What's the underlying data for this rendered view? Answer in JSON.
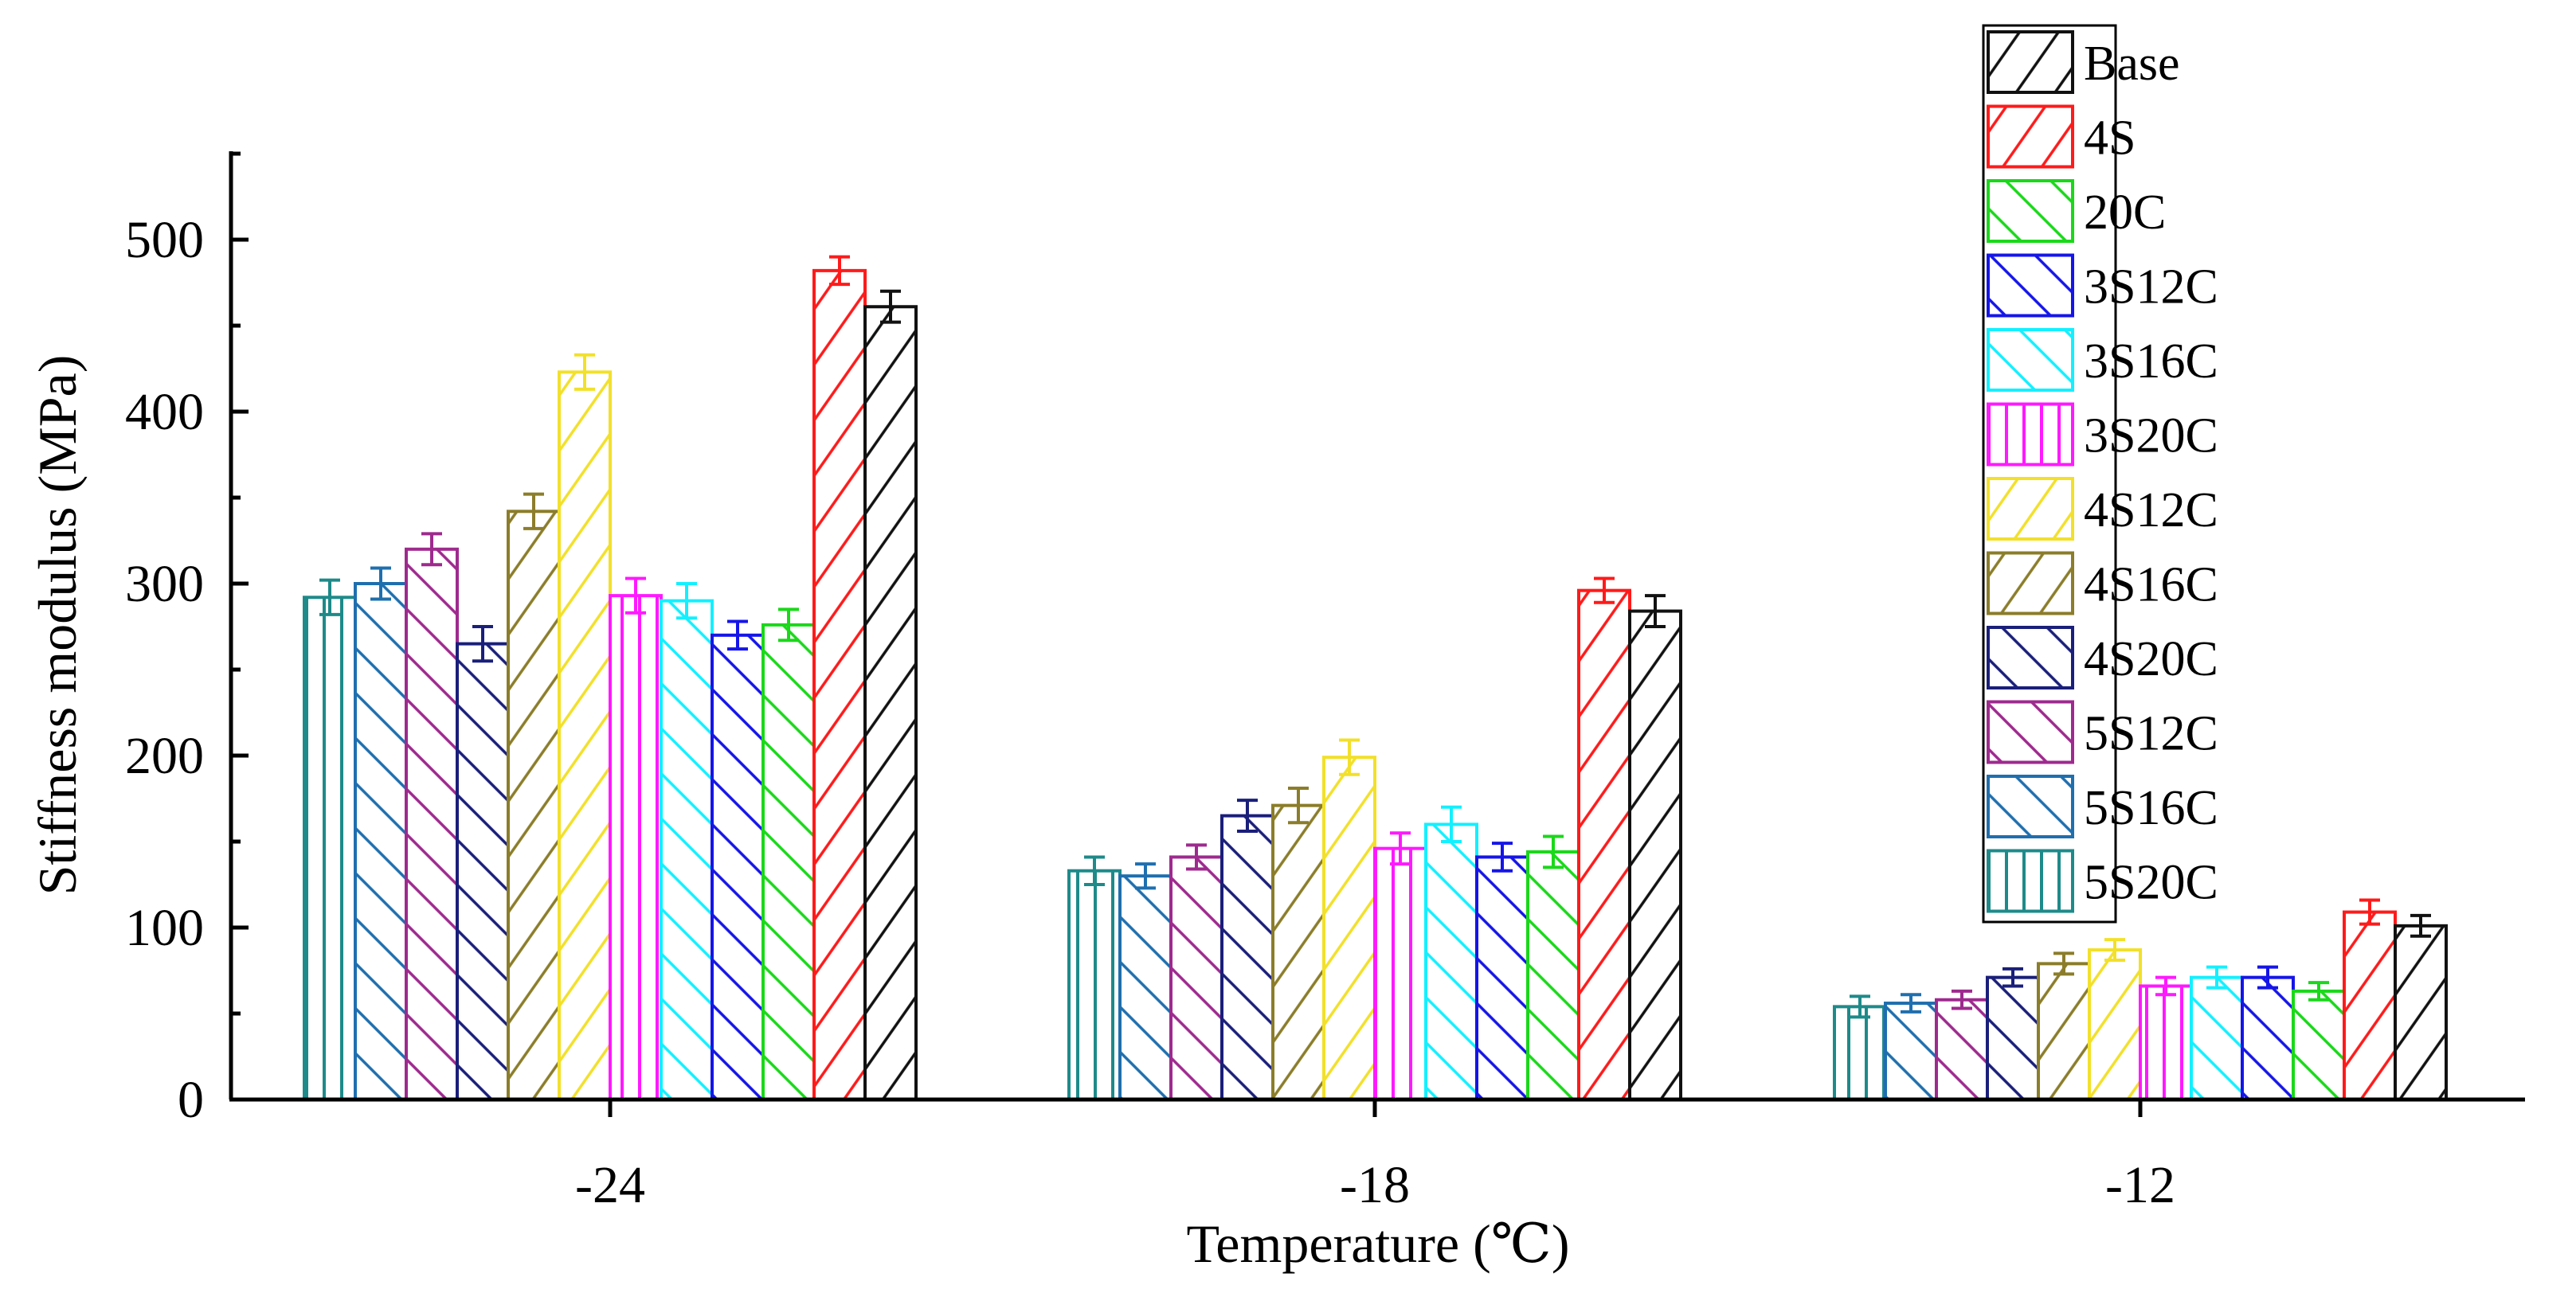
{
  "chart_data": {
    "type": "bar",
    "title": "",
    "xlabel": "Temperature (℃)",
    "ylabel": "Stiffness modulus (MPa)",
    "ylim": [
      0,
      550
    ],
    "yticks": [
      0,
      100,
      200,
      300,
      400,
      500
    ],
    "grid": false,
    "legend_position": "top-right",
    "categories": [
      "-24",
      "-18",
      "-12"
    ],
    "series": [
      {
        "name": "5S20C",
        "color": "#1e8a8a",
        "pattern": "vertical",
        "values": [
          292,
          133,
          54
        ],
        "errors": [
          10,
          8,
          6
        ]
      },
      {
        "name": "5S16C",
        "color": "#1f6fae",
        "pattern": "backslash",
        "values": [
          300,
          130,
          56
        ],
        "errors": [
          9,
          7,
          5
        ]
      },
      {
        "name": "5S12C",
        "color": "#9e2a8e",
        "pattern": "backslash",
        "values": [
          320,
          141,
          58
        ],
        "errors": [
          9,
          7,
          5
        ]
      },
      {
        "name": "4S20C",
        "color": "#1a1f7a",
        "pattern": "backslash",
        "values": [
          265,
          165,
          71
        ],
        "errors": [
          10,
          9,
          5
        ]
      },
      {
        "name": "4S16C",
        "color": "#8b7d2a",
        "pattern": "slash",
        "values": [
          342,
          171,
          79
        ],
        "errors": [
          10,
          10,
          6
        ]
      },
      {
        "name": "4S12C",
        "color": "#f2e02a",
        "pattern": "slash",
        "values": [
          423,
          199,
          87
        ],
        "errors": [
          10,
          10,
          6
        ]
      },
      {
        "name": "3S20C",
        "color": "#ff19ff",
        "pattern": "vertical",
        "values": [
          293,
          146,
          66
        ],
        "errors": [
          10,
          9,
          5
        ]
      },
      {
        "name": "3S16C",
        "color": "#13f0ff",
        "pattern": "backslash",
        "values": [
          290,
          160,
          71
        ],
        "errors": [
          10,
          10,
          6
        ]
      },
      {
        "name": "3S12C",
        "color": "#1515e8",
        "pattern": "backslash",
        "values": [
          270,
          141,
          71
        ],
        "errors": [
          8,
          8,
          6
        ]
      },
      {
        "name": "20C",
        "color": "#1ad81a",
        "pattern": "backslash",
        "values": [
          276,
          144,
          63
        ],
        "errors": [
          9,
          9,
          5
        ]
      },
      {
        "name": "4S",
        "color": "#ff1a1a",
        "pattern": "slash",
        "values": [
          482,
          296,
          109
        ],
        "errors": [
          8,
          7,
          7
        ]
      },
      {
        "name": "Base",
        "color": "#111111",
        "pattern": "slash",
        "values": [
          461,
          284,
          101
        ],
        "errors": [
          9,
          9,
          6
        ]
      }
    ],
    "legend_order": [
      "Base",
      "4S",
      "20C",
      "3S12C",
      "3S16C",
      "3S20C",
      "4S12C",
      "4S16C",
      "4S20C",
      "5S12C",
      "5S16C",
      "5S20C"
    ]
  }
}
